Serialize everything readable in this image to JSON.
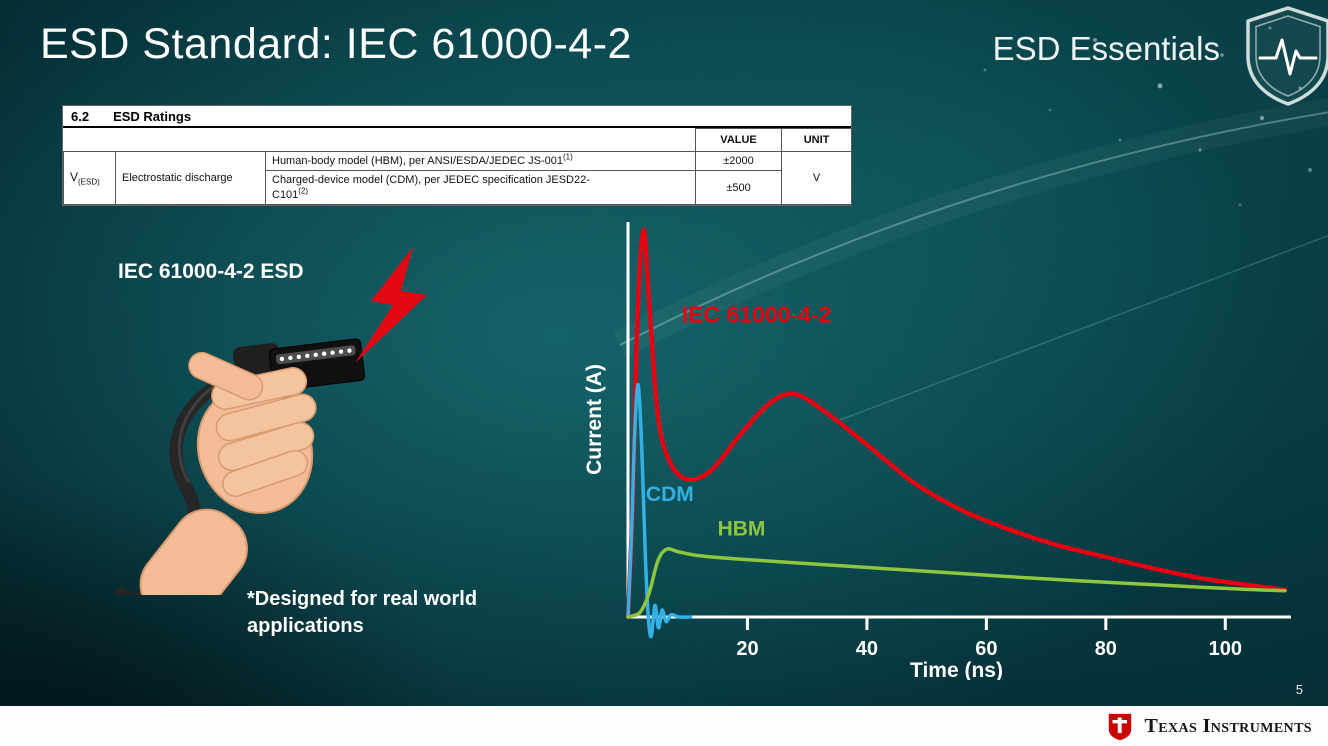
{
  "slide": {
    "title": "ESD Standard: IEC 61000-4-2",
    "program": "ESD Essentials",
    "page_number": "5",
    "brand": "Texas Instruments"
  },
  "ratings_table": {
    "section_number": "6.2",
    "section_title": "ESD Ratings",
    "value_header": "VALUE",
    "unit_header": "UNIT",
    "symbol_base": "V",
    "symbol_sub": "(ESD)",
    "parameter": "Electrostatic discharge",
    "rows": [
      {
        "description": "Human-body model (HBM), per ANSI/ESDA/JEDEC JS-001",
        "footnote": "(1)",
        "value": "±2000"
      },
      {
        "description": "Charged-device model (CDM), per JEDEC specification JESD22-C101",
        "footnote": "(2)",
        "value": "±500"
      }
    ],
    "unit": "V"
  },
  "illustration": {
    "caption": "IEC 61000-4-2 ESD",
    "note_line1": "*Designed for real world",
    "note_line2": "applications"
  },
  "chart_data": {
    "type": "line",
    "title": "",
    "xlabel": "Time (ns)",
    "ylabel": "Current (A)",
    "xlim": [
      0,
      110
    ],
    "ylim": [
      0,
      1.02
    ],
    "x_ticks": [
      20,
      40,
      60,
      80,
      100
    ],
    "grid": false,
    "legend_position": "inline-labels",
    "series": [
      {
        "name": "IEC 61000-4-2",
        "color": "#e60012",
        "stroke_width": 4.5,
        "label_pos": [
          9,
          0.76
        ],
        "points": [
          [
            0,
            0
          ],
          [
            0.8,
            0.3
          ],
          [
            1.6,
            0.78
          ],
          [
            2.6,
            1.0
          ],
          [
            3.6,
            0.8
          ],
          [
            5,
            0.52
          ],
          [
            7,
            0.4
          ],
          [
            10,
            0.355
          ],
          [
            14,
            0.38
          ],
          [
            19,
            0.475
          ],
          [
            24,
            0.555
          ],
          [
            28,
            0.575
          ],
          [
            33,
            0.53
          ],
          [
            40,
            0.445
          ],
          [
            48,
            0.345
          ],
          [
            56,
            0.275
          ],
          [
            64,
            0.225
          ],
          [
            72,
            0.185
          ],
          [
            80,
            0.155
          ],
          [
            88,
            0.125
          ],
          [
            96,
            0.1
          ],
          [
            104,
            0.082
          ],
          [
            110,
            0.07
          ]
        ]
      },
      {
        "name": "CDM",
        "color": "#33b1e6",
        "stroke_width": 3.5,
        "label_pos": [
          3,
          0.3
        ],
        "points": [
          [
            0,
            0
          ],
          [
            0.6,
            0.22
          ],
          [
            1.1,
            0.47
          ],
          [
            1.7,
            0.6
          ],
          [
            2.3,
            0.44
          ],
          [
            2.9,
            0.16
          ],
          [
            3.4,
            0
          ],
          [
            3.9,
            -0.05
          ],
          [
            4.5,
            0.03
          ],
          [
            5.1,
            -0.028
          ],
          [
            5.7,
            0.018
          ],
          [
            6.4,
            -0.012
          ],
          [
            7.2,
            0.006
          ],
          [
            8.5,
            0
          ],
          [
            10.5,
            0
          ]
        ]
      },
      {
        "name": "HBM",
        "color": "#8dc63f",
        "stroke_width": 3.5,
        "label_pos": [
          15,
          0.21
        ],
        "points": [
          [
            0,
            0
          ],
          [
            2,
            0.012
          ],
          [
            3.5,
            0.06
          ],
          [
            5,
            0.145
          ],
          [
            6.5,
            0.175
          ],
          [
            8.5,
            0.168
          ],
          [
            12,
            0.158
          ],
          [
            18,
            0.15
          ],
          [
            26,
            0.142
          ],
          [
            36,
            0.132
          ],
          [
            46,
            0.122
          ],
          [
            56,
            0.112
          ],
          [
            66,
            0.102
          ],
          [
            76,
            0.093
          ],
          [
            86,
            0.085
          ],
          [
            96,
            0.077
          ],
          [
            104,
            0.071
          ],
          [
            110,
            0.068
          ]
        ]
      }
    ]
  }
}
